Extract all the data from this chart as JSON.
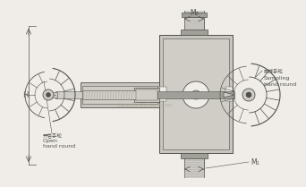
{
  "bg_color": "#f0ede8",
  "line_color": "#808078",
  "dark_line": "#505048",
  "light_gray": "#c8c5be",
  "mid_gray": "#a0a098",
  "body_color": "#d0cdc6",
  "valve_color": "#b8b5ae",
  "label_M2": "M₂",
  "label_M1": "M₁",
  "label_H": "H",
  "label_open_cn": "开启手轮",
  "label_open_en1": "Open",
  "label_open_en2": "hand round",
  "label_sample_cn": "取样手轮",
  "label_sample_en1": "Sampling",
  "label_sample_en2": "hand round",
  "watermark": "NeedleValve.com"
}
